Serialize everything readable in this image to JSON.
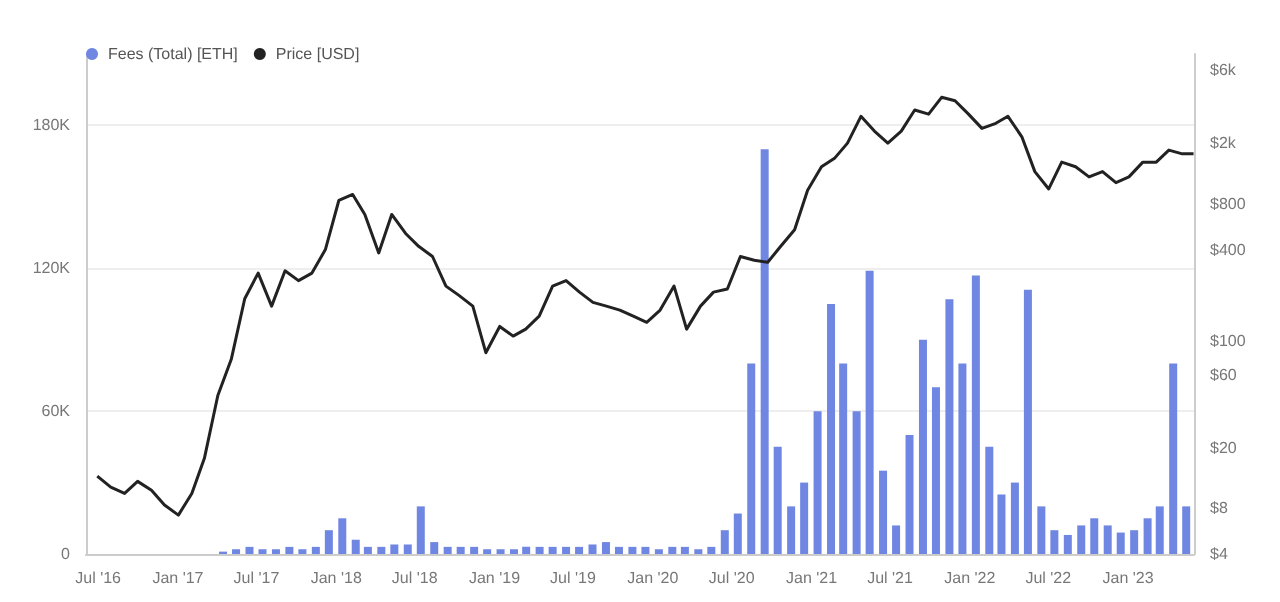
{
  "chart_data": {
    "type": "bar",
    "legend": "top left",
    "grid": "y",
    "log": "y2",
    "x": [
      "2016-07",
      "2016-08",
      "2016-09",
      "2016-10",
      "2016-11",
      "2016-12",
      "2017-01",
      "2017-02",
      "2017-03",
      "2017-04",
      "2017-05",
      "2017-06",
      "2017-07",
      "2017-08",
      "2017-09",
      "2017-10",
      "2017-11",
      "2017-12",
      "2018-01",
      "2018-02",
      "2018-03",
      "2018-04",
      "2018-05",
      "2018-06",
      "2018-07",
      "2018-08",
      "2018-09",
      "2018-10",
      "2018-11",
      "2018-12",
      "2019-01",
      "2019-02",
      "2019-03",
      "2019-04",
      "2019-05",
      "2019-06",
      "2019-07",
      "2019-08",
      "2019-09",
      "2019-10",
      "2019-11",
      "2019-12",
      "2020-01",
      "2020-02",
      "2020-03",
      "2020-04",
      "2020-05",
      "2020-06",
      "2020-07",
      "2020-08",
      "2020-09",
      "2020-10",
      "2020-11",
      "2020-12",
      "2021-01",
      "2021-02",
      "2021-03",
      "2021-04",
      "2021-05",
      "2021-06",
      "2021-07",
      "2021-08",
      "2021-09",
      "2021-10",
      "2021-11",
      "2021-12",
      "2022-01",
      "2022-02",
      "2022-03",
      "2022-04",
      "2022-05",
      "2022-06",
      "2022-07",
      "2022-08",
      "2022-09",
      "2022-10",
      "2022-11",
      "2022-12",
      "2023-01",
      "2023-02",
      "2023-03",
      "2023-04",
      "2023-05"
    ],
    "series": [
      {
        "name": "Fees (Total) [ETH]",
        "color": "#6f86e2",
        "values": [
          0,
          0,
          0,
          0,
          0,
          0,
          0,
          0,
          0,
          1000,
          2000,
          3000,
          2000,
          2000,
          3000,
          2000,
          3000,
          10000,
          15000,
          6000,
          3000,
          3000,
          4000,
          4000,
          20000,
          5000,
          3000,
          3000,
          3000,
          2000,
          2000,
          2000,
          3000,
          3000,
          3000,
          3000,
          3000,
          4000,
          5000,
          3000,
          3000,
          3000,
          2000,
          3000,
          3000,
          2000,
          3000,
          10000,
          17000,
          80000,
          170000,
          45000,
          20000,
          30000,
          60000,
          105000,
          80000,
          60000,
          119000,
          35000,
          12000,
          50000,
          90000,
          70000,
          107000,
          80000,
          117000,
          45000,
          25000,
          30000,
          111000,
          20000,
          10000,
          8000,
          12000,
          15000,
          12000,
          9000,
          10000,
          15000,
          20000,
          80000,
          20000
        ]
      },
      {
        "name": "Price [USD]",
        "type": "line",
        "axis": "y2",
        "color": "#222222",
        "x": [
          "2016-06-29",
          "2016-07-30",
          "2016-08-31",
          "2016-09-30",
          "2016-11-01",
          "2016-12-01",
          "2017-01-02",
          "2017-02-02",
          "2017-03-03",
          "2017-04-03",
          "2017-05-04",
          "2017-06-04",
          "2017-07-05",
          "2017-08-05",
          "2017-09-05",
          "2017-10-06",
          "2017-11-06",
          "2017-12-07",
          "2018-01-07",
          "2018-02-08",
          "2018-03-08",
          "2018-04-09",
          "2018-05-09",
          "2018-06-10",
          "2018-07-10",
          "2018-08-11",
          "2018-09-11",
          "2018-10-11",
          "2018-11-12",
          "2018-12-12",
          "2019-01-13",
          "2019-02-13",
          "2019-03-14",
          "2019-04-14",
          "2019-05-15",
          "2019-06-15",
          "2019-07-16",
          "2019-08-16",
          "2019-09-16",
          "2019-10-17",
          "2019-11-17",
          "2019-12-18",
          "2020-01-18",
          "2020-02-19",
          "2020-03-19",
          "2020-04-20",
          "2020-05-20",
          "2020-06-21",
          "2020-07-21",
          "2020-08-22",
          "2020-09-22",
          "2020-10-22",
          "2020-11-23",
          "2020-12-23",
          "2021-01-24",
          "2021-02-24",
          "2021-03-25",
          "2021-04-25",
          "2021-05-26",
          "2021-06-26",
          "2021-07-27",
          "2021-08-27",
          "2021-09-28",
          "2021-10-28",
          "2021-11-28",
          "2021-12-29",
          "2022-01-29",
          "2022-03-02",
          "2022-03-30",
          "2022-05-01",
          "2022-05-31",
          "2022-07-02",
          "2022-08-01",
          "2022-09-02",
          "2022-10-03",
          "2022-11-03",
          "2022-12-04",
          "2023-01-03",
          "2023-02-04",
          "2023-03-07",
          "2023-04-05",
          "2023-05-06",
          "2023-06-01"
        ],
        "values": [
          13,
          11,
          10,
          12,
          10.5,
          8.4,
          7.2,
          10,
          17,
          44,
          76,
          190,
          280,
          170,
          290,
          250,
          280,
          400,
          840,
          920,
          680,
          380,
          680,
          510,
          420,
          360,
          230,
          200,
          170,
          84,
          125,
          108,
          120,
          146,
          230,
          250,
          210,
          180,
          170,
          160,
          146,
          133,
          160,
          230,
          120,
          170,
          210,
          220,
          360,
          340,
          330,
          420,
          540,
          980,
          1400,
          1600,
          2000,
          3000,
          2400,
          2000,
          2400,
          3300,
          3100,
          4000,
          3800,
          3100,
          2500,
          2700,
          3000,
          2200,
          1300,
          1000,
          1500,
          1400,
          1200,
          1300,
          1100,
          1200,
          1500,
          1500,
          1800,
          1700,
          1700
        ]
      }
    ],
    "xlim": [
      "2016-06-03",
      "2023-06-02"
    ],
    "xticks": [
      {
        "value": "2016-07-01",
        "label": "Jul '16"
      },
      {
        "value": "2017-01-01",
        "label": "Jan '17"
      },
      {
        "value": "2017-07-01",
        "label": "Jul '17"
      },
      {
        "value": "2018-01-01",
        "label": "Jan '18"
      },
      {
        "value": "2018-07-01",
        "label": "Jul '18"
      },
      {
        "value": "2019-01-01",
        "label": "Jan '19"
      },
      {
        "value": "2019-07-01",
        "label": "Jul '19"
      },
      {
        "value": "2020-01-01",
        "label": "Jan '20"
      },
      {
        "value": "2020-07-01",
        "label": "Jul '20"
      },
      {
        "value": "2021-01-01",
        "label": "Jan '21"
      },
      {
        "value": "2021-07-01",
        "label": "Jul '21"
      },
      {
        "value": "2022-01-01",
        "label": "Jan '22"
      },
      {
        "value": "2022-07-01",
        "label": "Jul '22"
      },
      {
        "value": "2023-01-01",
        "label": "Jan '23"
      }
    ],
    "ylim": [
      0,
      210000
    ],
    "yticks": [
      {
        "value": 0,
        "label": "0"
      },
      {
        "value": 60000,
        "label": "60K"
      },
      {
        "value": 120000,
        "label": "120K"
      },
      {
        "value": 180000,
        "label": "180K"
      }
    ],
    "y2lim": [
      4,
      7700
    ],
    "y2ticks": [
      {
        "value": 4,
        "label": "$4"
      },
      {
        "value": 8,
        "label": "$8"
      },
      {
        "value": 20,
        "label": "$20"
      },
      {
        "value": 60,
        "label": "$60"
      },
      {
        "value": 100,
        "label": "$100"
      },
      {
        "value": 400,
        "label": "$400"
      },
      {
        "value": 800,
        "label": "$800"
      },
      {
        "value": 2000,
        "label": "$2k"
      },
      {
        "value": 6000,
        "label": "$6k"
      }
    ]
  }
}
